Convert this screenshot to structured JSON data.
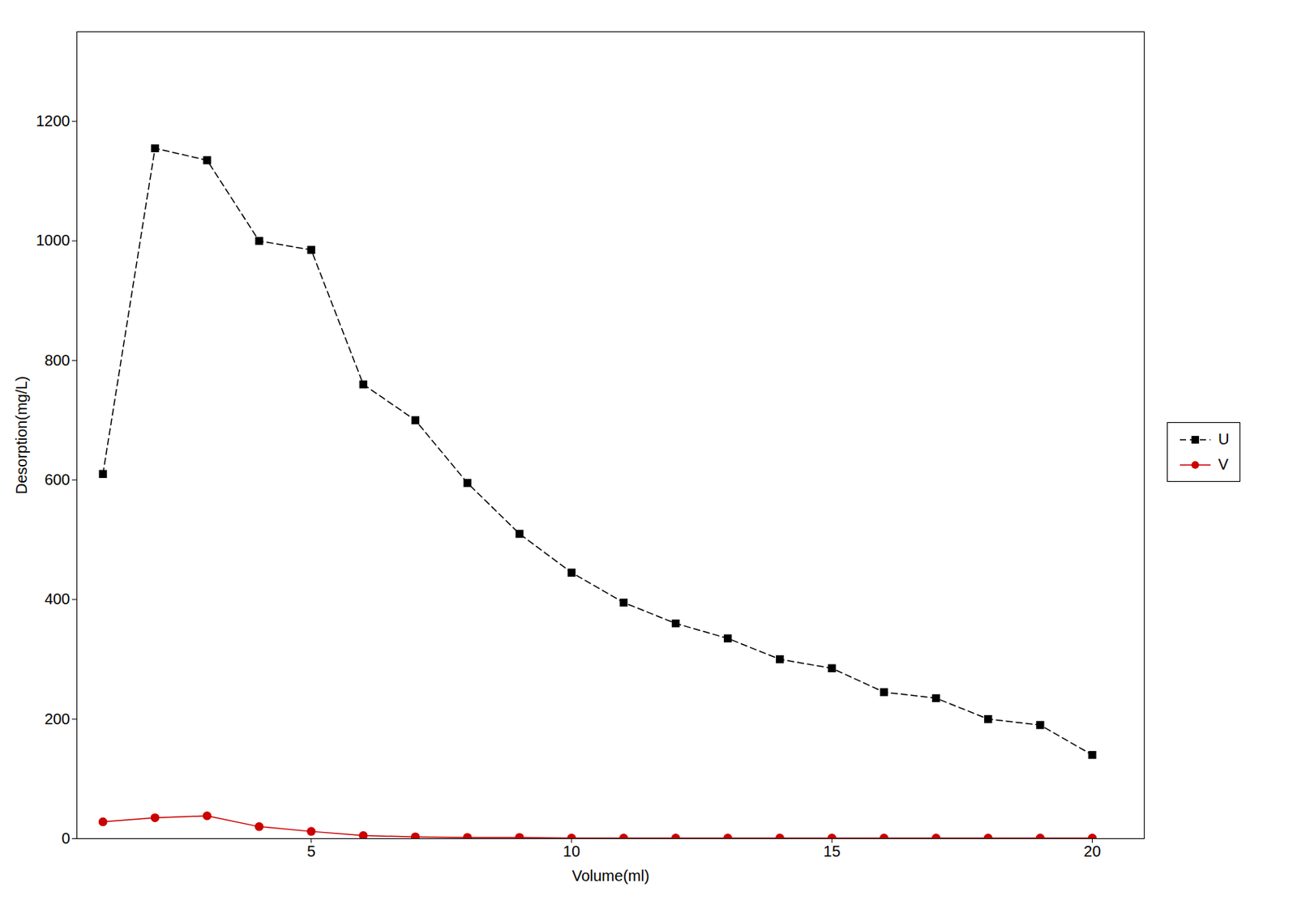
{
  "chart_data": {
    "type": "line",
    "xlabel": "Volume(ml)",
    "ylabel": "Desorption(mg/L)",
    "x": [
      1,
      2,
      3,
      4,
      5,
      6,
      7,
      8,
      9,
      10,
      11,
      12,
      13,
      14,
      15,
      16,
      17,
      18,
      19,
      20
    ],
    "series": [
      {
        "name": "U",
        "color": "#000000",
        "marker": "square",
        "line_style": "dashed",
        "values": [
          610,
          1155,
          1135,
          1000,
          985,
          760,
          700,
          595,
          510,
          445,
          395,
          360,
          335,
          300,
          285,
          245,
          235,
          200,
          190,
          140
        ]
      },
      {
        "name": "V",
        "color": "#cc0000",
        "marker": "circle",
        "line_style": "solid",
        "values": [
          28,
          35,
          38,
          20,
          12,
          5,
          3,
          2,
          2,
          1,
          1,
          1,
          1,
          1,
          1,
          1,
          1,
          1,
          1,
          1
        ]
      }
    ],
    "xlim": [
      0.5,
      21
    ],
    "ylim": [
      0,
      1350
    ],
    "xticks": [
      5,
      10,
      15,
      20
    ],
    "yticks": [
      0,
      200,
      400,
      600,
      800,
      1000,
      1200
    ],
    "grid": false,
    "legend": "right"
  }
}
